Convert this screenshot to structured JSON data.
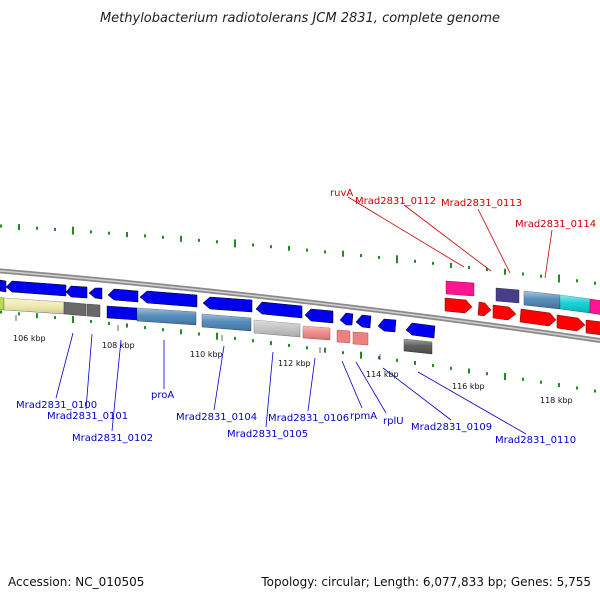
{
  "title": "Methylobacterium radiotolerans JCM 2831, complete genome",
  "footer": {
    "accession": "Accession: NC_010505",
    "summary": "Topology: circular; Length: 6,077,833 bp; Genes: 5,755"
  },
  "scale": {
    "unit": "kbp",
    "ticks": [
      "106 kbp",
      "108 kbp",
      "110 kbp",
      "112 kbp",
      "114 kbp",
      "116 kbp",
      "118 kbp"
    ]
  },
  "colors": {
    "forward_label": "#cc0000",
    "reverse_label": "#0000cc",
    "backbone": "#888888",
    "gc_skew": "#228b22"
  },
  "genes_forward": [
    {
      "name": "ruvA"
    },
    {
      "name": "Mrad2831_0112"
    },
    {
      "name": "Mrad2831_0113"
    },
    {
      "name": "Mrad2831_0114"
    }
  ],
  "genes_reverse": [
    {
      "name": "Mrad2831_0100"
    },
    {
      "name": "Mrad2831_0101"
    },
    {
      "name": "Mrad2831_0102"
    },
    {
      "name": "proA"
    },
    {
      "name": "Mrad2831_0104"
    },
    {
      "name": "Mrad2831_0105"
    },
    {
      "name": "Mrad2831_0106"
    },
    {
      "name": "rpmA"
    },
    {
      "name": "rplU"
    },
    {
      "name": "Mrad2831_0109"
    },
    {
      "name": "Mrad2831_0110"
    }
  ]
}
